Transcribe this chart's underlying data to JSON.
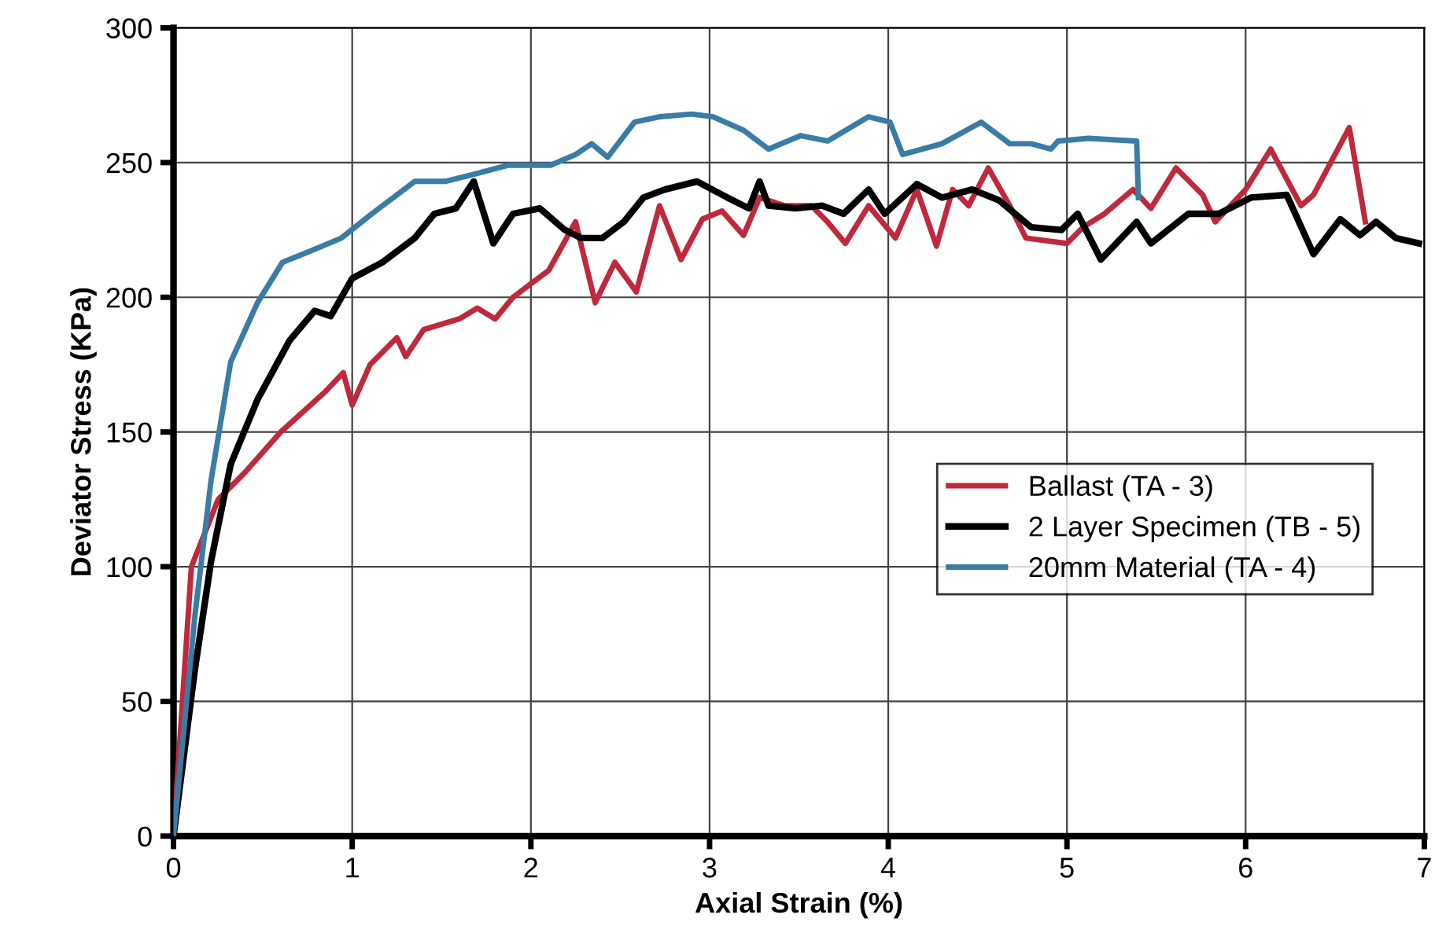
{
  "chart_data": {
    "type": "line",
    "xlabel": "Axial Strain (%)",
    "ylabel": "Deviator Stress (KPa)",
    "xlim": [
      0,
      7
    ],
    "ylim": [
      0,
      300
    ],
    "xticks": [
      0,
      1,
      2,
      3,
      4,
      5,
      6,
      7
    ],
    "yticks": [
      0,
      50,
      100,
      150,
      200,
      250,
      300
    ],
    "grid": true,
    "legend": "center right",
    "marker": "none",
    "line_style": "solid",
    "series": [
      {
        "name": "Ballast (TA - 3)",
        "color": "#c0283c",
        "x": [
          0,
          0.1,
          0.25,
          0.4,
          0.6,
          0.85,
          0.95,
          1.0,
          1.1,
          1.25,
          1.3,
          1.4,
          1.6,
          1.7,
          1.8,
          1.9,
          2.0,
          2.1,
          2.25,
          2.36,
          2.47,
          2.59,
          2.72,
          2.84,
          2.96,
          3.07,
          3.19,
          3.28,
          3.42,
          3.57,
          3.66,
          3.76,
          3.89,
          4.04,
          4.16,
          4.27,
          4.36,
          4.45,
          4.56,
          4.68,
          4.77,
          5.0,
          5.09,
          5.21,
          5.37,
          5.47,
          5.61,
          5.76,
          5.83,
          6.0,
          6.14,
          6.31,
          6.38,
          6.58,
          6.67
        ],
        "values": [
          0,
          100,
          125,
          135,
          150,
          165,
          172,
          160,
          175,
          185,
          178,
          188,
          192,
          196,
          192,
          200,
          205,
          210,
          228,
          198,
          213,
          202,
          234,
          214,
          229,
          232,
          223,
          237,
          234,
          234,
          228,
          220,
          234,
          222,
          240,
          219,
          240,
          234,
          248,
          234,
          222,
          220,
          226,
          231,
          240,
          233,
          248,
          238,
          228,
          240,
          255,
          234,
          238,
          263,
          228
        ]
      },
      {
        "name": "2 Layer Specimen (TB - 5)",
        "color": "#000000",
        "x": [
          0,
          0.12,
          0.21,
          0.32,
          0.47,
          0.65,
          0.79,
          0.88,
          1.0,
          1.17,
          1.35,
          1.46,
          1.58,
          1.68,
          1.79,
          1.9,
          2.05,
          2.19,
          2.28,
          2.4,
          2.52,
          2.63,
          2.75,
          2.93,
          3.1,
          3.22,
          3.28,
          3.33,
          3.48,
          3.63,
          3.75,
          3.89,
          3.98,
          4.16,
          4.3,
          4.47,
          4.62,
          4.8,
          4.97,
          5.06,
          5.19,
          5.39,
          5.47,
          5.68,
          5.85,
          6.03,
          6.23,
          6.38,
          6.53,
          6.64,
          6.73,
          6.84,
          6.97
        ],
        "values": [
          0,
          62,
          102,
          138,
          162,
          184,
          195,
          193,
          207,
          213,
          222,
          231,
          233,
          243,
          220,
          231,
          233,
          225,
          222,
          222,
          228,
          237,
          240,
          243,
          237,
          233,
          243,
          234,
          233,
          234,
          231,
          240,
          231,
          242,
          237,
          240,
          236,
          226,
          225,
          231,
          214,
          228,
          220,
          231,
          231,
          237,
          238,
          216,
          229,
          223,
          228,
          222,
          220
        ]
      },
      {
        "name": "20mm Material (TA - 4)",
        "color": "#3a7ca5",
        "x": [
          0,
          0.12,
          0.21,
          0.32,
          0.47,
          0.61,
          0.76,
          0.94,
          1.11,
          1.35,
          1.52,
          1.7,
          1.87,
          2.11,
          2.25,
          2.34,
          2.43,
          2.58,
          2.72,
          2.9,
          3.02,
          3.19,
          3.33,
          3.51,
          3.66,
          3.89,
          4.01,
          4.08,
          4.3,
          4.52,
          4.68,
          4.8,
          4.91,
          4.95,
          5.12,
          5.39,
          5.4
        ],
        "values": [
          0,
          82,
          132,
          176,
          198,
          213,
          217,
          222,
          231,
          243,
          243,
          246,
          249,
          249,
          253,
          257,
          252,
          265,
          267,
          268,
          267,
          262,
          255,
          260,
          258,
          267,
          265,
          253,
          257,
          265,
          257,
          257,
          255,
          258,
          259,
          258,
          237
        ]
      }
    ]
  }
}
